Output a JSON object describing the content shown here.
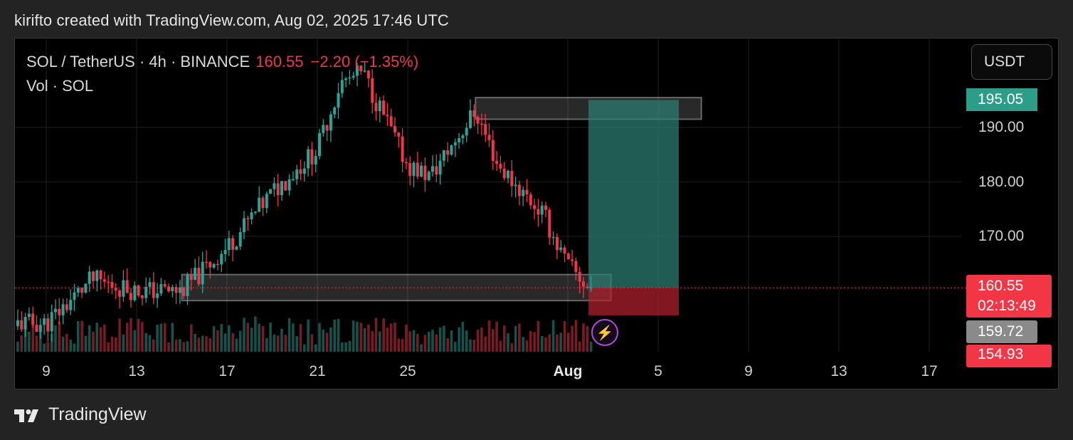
{
  "header": {
    "attribution": "kirifto created with TradingView.com, Aug 02, 2025 17:46 UTC"
  },
  "legend": {
    "symbol": "SOL / TetherUS · 4h · BINANCE",
    "price": "160.55",
    "change": "−2.20 (−1.35%)",
    "volume": "Vol · SOL"
  },
  "currency_button": "USDT",
  "price_tags": {
    "target": "195.05",
    "current": "160.55",
    "countdown": "02:13:49",
    "stop": "159.72",
    "cut": "154.93"
  },
  "colors": {
    "up": "#26a69a",
    "down": "#f23645",
    "background": "#000000",
    "zone": "#ffffff",
    "profit": "#2d7f73",
    "loss": "#b3202c",
    "alert": "#b04bd9"
  },
  "icons": {
    "alert": "lightning-icon",
    "logo": "tradingview-logo-icon"
  },
  "footer": {
    "brand": "TradingView"
  },
  "chart_data": {
    "type": "candlestick",
    "symbol": "SOL/USDT",
    "interval": "4h",
    "exchange": "BINANCE",
    "x_ticks": [
      "9",
      "13",
      "17",
      "21",
      "25",
      "Aug",
      "5",
      "9",
      "13",
      "17"
    ],
    "y_ticks": [
      "190.00",
      "180.00",
      "170.00"
    ],
    "ylim": [
      153,
      204
    ],
    "grid": true,
    "closes_approx": [
      {
        "date": "2025-07-09",
        "close": 154
      },
      {
        "date": "2025-07-11",
        "close": 162
      },
      {
        "date": "2025-07-13",
        "close": 160
      },
      {
        "date": "2025-07-15",
        "close": 160
      },
      {
        "date": "2025-07-17",
        "close": 168
      },
      {
        "date": "2025-07-19",
        "close": 178
      },
      {
        "date": "2025-07-21",
        "close": 186
      },
      {
        "date": "2025-07-22",
        "close": 198
      },
      {
        "date": "2025-07-23",
        "close": 200
      },
      {
        "date": "2025-07-25",
        "close": 183
      },
      {
        "date": "2025-07-26",
        "close": 181
      },
      {
        "date": "2025-07-27",
        "close": 187
      },
      {
        "date": "2025-07-28",
        "close": 193
      },
      {
        "date": "2025-07-29",
        "close": 183
      },
      {
        "date": "2025-07-31",
        "close": 174
      },
      {
        "date": "2025-08-01",
        "close": 165
      },
      {
        "date": "2025-08-02",
        "close": 160.55
      }
    ],
    "zones": [
      {
        "label": "resistance",
        "from_date": "2025-07-28",
        "to_date": "2025-08-07",
        "low": 191.5,
        "high": 195.5
      },
      {
        "label": "support",
        "from_date": "2025-07-15",
        "to_date": "2025-08-03",
        "low": 158.2,
        "high": 163
      }
    ],
    "position": {
      "type": "long",
      "entry": 160.55,
      "target": 195.05,
      "stop": 155.5,
      "from_date": "2025-08-02",
      "to_date": "2025-08-06"
    }
  }
}
